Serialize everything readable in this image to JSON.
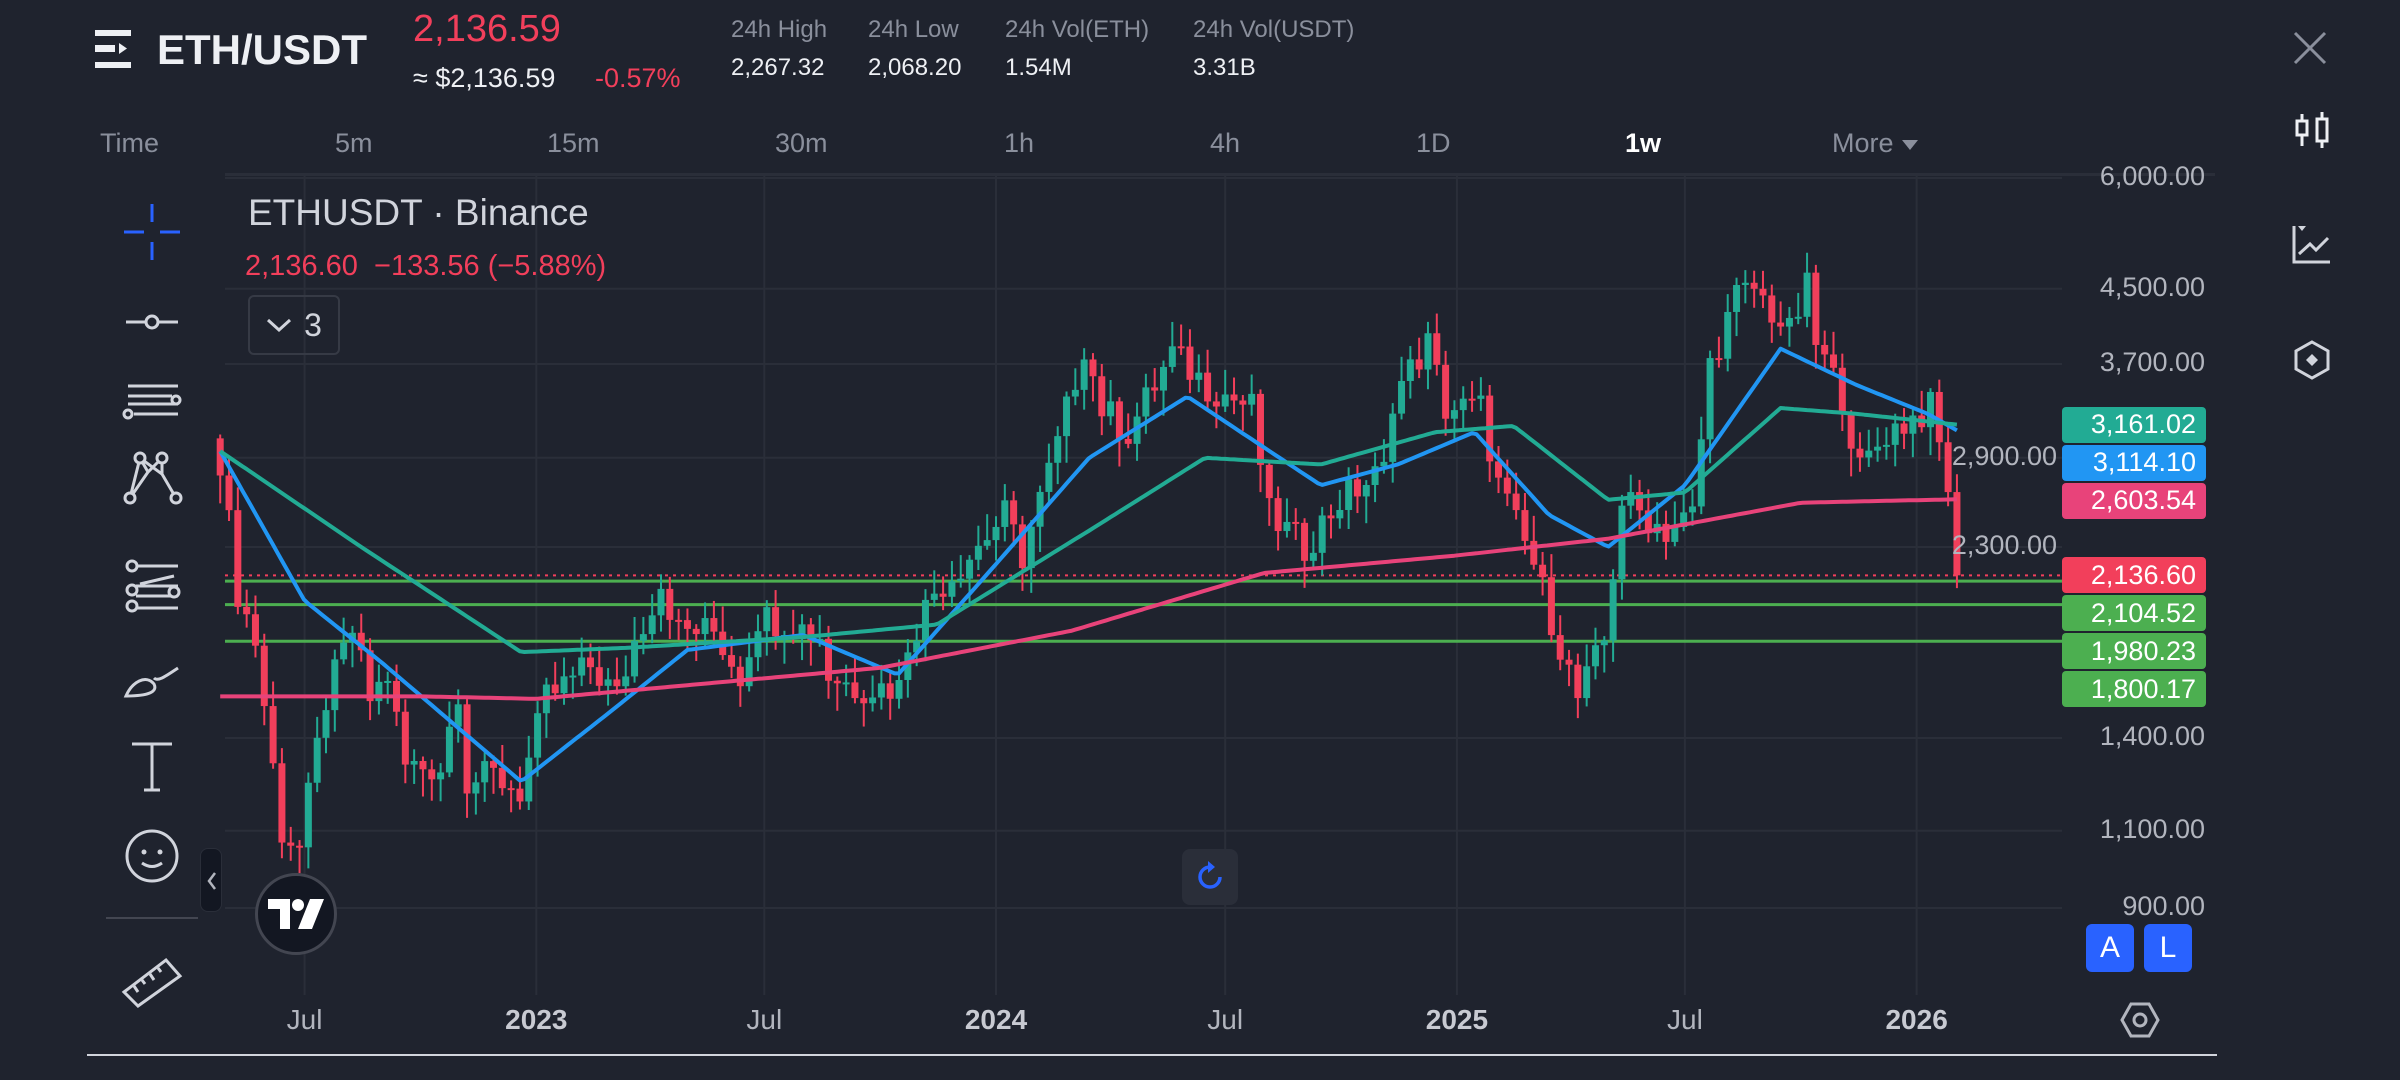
{
  "header": {
    "pair": "ETH/USDT",
    "price": "2,136.59",
    "approx": "≈ $2,136.59",
    "change": "-0.57%",
    "stats": [
      {
        "label": "24h High",
        "value": "2,267.32"
      },
      {
        "label": "24h Low",
        "value": "2,068.20"
      },
      {
        "label": "24h Vol(ETH)",
        "value": "1.54M"
      },
      {
        "label": "24h Vol(USDT)",
        "value": "3.31B"
      }
    ]
  },
  "timeframes": [
    "Time",
    "5m",
    "15m",
    "30m",
    "1h",
    "4h",
    "1D",
    "1w",
    "More"
  ],
  "active_timeframe": "1w",
  "legend": {
    "title": "ETHUSDT · Binance",
    "last": "2,136.60",
    "change": "−133.56 (−5.88%)",
    "indicators_count": "3"
  },
  "price_tags": [
    {
      "text": "3,161.02",
      "value": 3161.02,
      "color": "#22ab94"
    },
    {
      "text": "3,114.10",
      "value": 3114.1,
      "color": "#2196f3"
    },
    {
      "text": "2,603.54",
      "value": 2603.54,
      "color": "#e8437a"
    },
    {
      "text": "2,136.60",
      "value": 2136.6,
      "color": "#f23f5b"
    },
    {
      "text": "2,104.52",
      "value": 2104.52,
      "color": "#4caf50"
    },
    {
      "text": "1,980.23",
      "value": 1980.23,
      "color": "#4caf50"
    },
    {
      "text": "1,800.17",
      "value": 1800.17,
      "color": "#4caf50"
    }
  ],
  "scale_buttons": [
    "A",
    "L"
  ],
  "chart_data": {
    "type": "candlestick",
    "interval": "1w",
    "scale": "log",
    "ylim": [
      900,
      6000
    ],
    "y_ticks": [
      {
        "v": 6000,
        "t": "6,000.00"
      },
      {
        "v": 4500,
        "t": "4,500.00"
      },
      {
        "v": 3700,
        "t": "3,700.00"
      },
      {
        "v": 2900,
        "t": "2,900.00"
      },
      {
        "v": 2300,
        "t": "2,300.00"
      },
      {
        "v": 1400,
        "t": "1,400.00"
      },
      {
        "v": 1100,
        "t": "1,100.00"
      },
      {
        "v": 900,
        "t": "900.00"
      }
    ],
    "x_ticks": [
      {
        "d": "2022-07-01",
        "t": "Jul"
      },
      {
        "d": "2023-01-01",
        "t": "2023",
        "yr": true
      },
      {
        "d": "2023-07-01",
        "t": "Jul"
      },
      {
        "d": "2024-01-01",
        "t": "2024",
        "yr": true
      },
      {
        "d": "2024-07-01",
        "t": "Jul"
      },
      {
        "d": "2025-01-01",
        "t": "2025",
        "yr": true
      },
      {
        "d": "2025-07-01",
        "t": "Jul"
      },
      {
        "d": "2026-01-01",
        "t": "2026",
        "yr": true
      }
    ],
    "horizontal_lines": [
      2104.52,
      1980.23,
      1800.17
    ],
    "last_price": 2136.6,
    "colors": {
      "up": "#22ab94",
      "down": "#f23f5b"
    },
    "price_close_anchors": [
      [
        "2022-04-25",
        2900
      ],
      [
        "2022-05-09",
        2050
      ],
      [
        "2022-05-23",
        1800
      ],
      [
        "2022-06-13",
        1100
      ],
      [
        "2022-06-27",
        1050
      ],
      [
        "2022-07-18",
        1550
      ],
      [
        "2022-08-08",
        1850
      ],
      [
        "2022-08-22",
        1550
      ],
      [
        "2022-09-05",
        1650
      ],
      [
        "2022-09-19",
        1300
      ],
      [
        "2022-10-17",
        1300
      ],
      [
        "2022-10-31",
        1600
      ],
      [
        "2022-11-07",
        1250
      ],
      [
        "2022-11-28",
        1270
      ],
      [
        "2022-12-19",
        1220
      ],
      [
        "2023-01-09",
        1550
      ],
      [
        "2023-02-13",
        1690
      ],
      [
        "2023-03-06",
        1560
      ],
      [
        "2023-03-20",
        1800
      ],
      [
        "2023-04-10",
        2100
      ],
      [
        "2023-04-24",
        1850
      ],
      [
        "2023-05-22",
        1850
      ],
      [
        "2023-06-12",
        1650
      ],
      [
        "2023-06-26",
        1920
      ],
      [
        "2023-07-17",
        1900
      ],
      [
        "2023-08-14",
        1830
      ],
      [
        "2023-08-21",
        1650
      ],
      [
        "2023-09-11",
        1600
      ],
      [
        "2023-10-16",
        1600
      ],
      [
        "2023-10-23",
        1800
      ],
      [
        "2023-11-13",
        2050
      ],
      [
        "2023-12-11",
        2250
      ],
      [
        "2024-01-08",
        2500
      ],
      [
        "2024-01-22",
        2250
      ],
      [
        "2024-02-19",
        3000
      ],
      [
        "2024-03-11",
        3900
      ],
      [
        "2024-03-25",
        3300
      ],
      [
        "2024-04-15",
        3100
      ],
      [
        "2024-05-20",
        3800
      ],
      [
        "2024-06-17",
        3500
      ],
      [
        "2024-07-22",
        3300
      ],
      [
        "2024-08-05",
        2500
      ],
      [
        "2024-09-02",
        2300
      ],
      [
        "2024-09-30",
        2600
      ],
      [
        "2024-11-04",
        2800
      ],
      [
        "2024-11-11",
        3400
      ],
      [
        "2024-12-09",
        3900
      ],
      [
        "2024-12-23",
        3300
      ],
      [
        "2025-01-20",
        3300
      ],
      [
        "2025-02-03",
        2700
      ],
      [
        "2025-03-03",
        2200
      ],
      [
        "2025-04-07",
        1550
      ],
      [
        "2025-04-28",
        1800
      ],
      [
        "2025-05-12",
        2600
      ],
      [
        "2025-06-16",
        2400
      ],
      [
        "2025-07-07",
        2500
      ],
      [
        "2025-07-21",
        3700
      ],
      [
        "2025-08-11",
        4400
      ],
      [
        "2025-08-25",
        4500
      ],
      [
        "2025-09-22",
        4000
      ],
      [
        "2025-10-06",
        4500
      ],
      [
        "2025-10-13",
        3900
      ],
      [
        "2025-11-03",
        3400
      ],
      [
        "2025-11-17",
        2800
      ],
      [
        "2025-12-08",
        3100
      ],
      [
        "2026-01-12",
        3300
      ],
      [
        "2026-01-26",
        2700
      ],
      [
        "2026-02-02",
        2136.6
      ]
    ],
    "series": [
      {
        "name": "MA fast",
        "color": "#2196f3",
        "anchors": [
          [
            "2022-04-25",
            2950
          ],
          [
            "2022-07-01",
            2000
          ],
          [
            "2022-09-01",
            1700
          ],
          [
            "2022-12-20",
            1250
          ],
          [
            "2023-03-01",
            1500
          ],
          [
            "2023-05-01",
            1760
          ],
          [
            "2023-08-01",
            1830
          ],
          [
            "2023-10-15",
            1650
          ],
          [
            "2024-01-01",
            2200
          ],
          [
            "2024-03-15",
            2900
          ],
          [
            "2024-06-01",
            3400
          ],
          [
            "2024-09-15",
            2700
          ],
          [
            "2024-11-15",
            2850
          ],
          [
            "2025-01-15",
            3100
          ],
          [
            "2025-03-15",
            2500
          ],
          [
            "2025-05-01",
            2300
          ],
          [
            "2025-07-01",
            2700
          ],
          [
            "2025-09-15",
            3850
          ],
          [
            "2025-11-15",
            3500
          ],
          [
            "2026-01-10",
            3250
          ],
          [
            "2026-02-02",
            3114.1
          ]
        ]
      },
      {
        "name": "MA mid",
        "color": "#22ab94",
        "anchors": [
          [
            "2022-04-25",
            2950
          ],
          [
            "2022-08-15",
            2300
          ],
          [
            "2022-12-20",
            1750
          ],
          [
            "2023-03-15",
            1770
          ],
          [
            "2023-08-01",
            1820
          ],
          [
            "2023-11-15",
            1880
          ],
          [
            "2024-03-15",
            2400
          ],
          [
            "2024-06-15",
            2900
          ],
          [
            "2024-09-15",
            2850
          ],
          [
            "2024-12-15",
            3100
          ],
          [
            "2025-02-15",
            3150
          ],
          [
            "2025-05-01",
            2600
          ],
          [
            "2025-07-01",
            2650
          ],
          [
            "2025-09-15",
            3300
          ],
          [
            "2025-11-15",
            3250
          ],
          [
            "2026-02-02",
            3161.02
          ]
        ]
      },
      {
        "name": "MA slow",
        "color": "#e8437a",
        "anchors": [
          [
            "2022-04-25",
            1560
          ],
          [
            "2022-10-01",
            1560
          ],
          [
            "2023-01-01",
            1550
          ],
          [
            "2023-10-01",
            1680
          ],
          [
            "2024-03-01",
            1850
          ],
          [
            "2024-08-01",
            2150
          ],
          [
            "2025-01-01",
            2250
          ],
          [
            "2025-05-01",
            2350
          ],
          [
            "2025-10-01",
            2580
          ],
          [
            "2026-02-02",
            2603.54
          ]
        ]
      }
    ]
  }
}
